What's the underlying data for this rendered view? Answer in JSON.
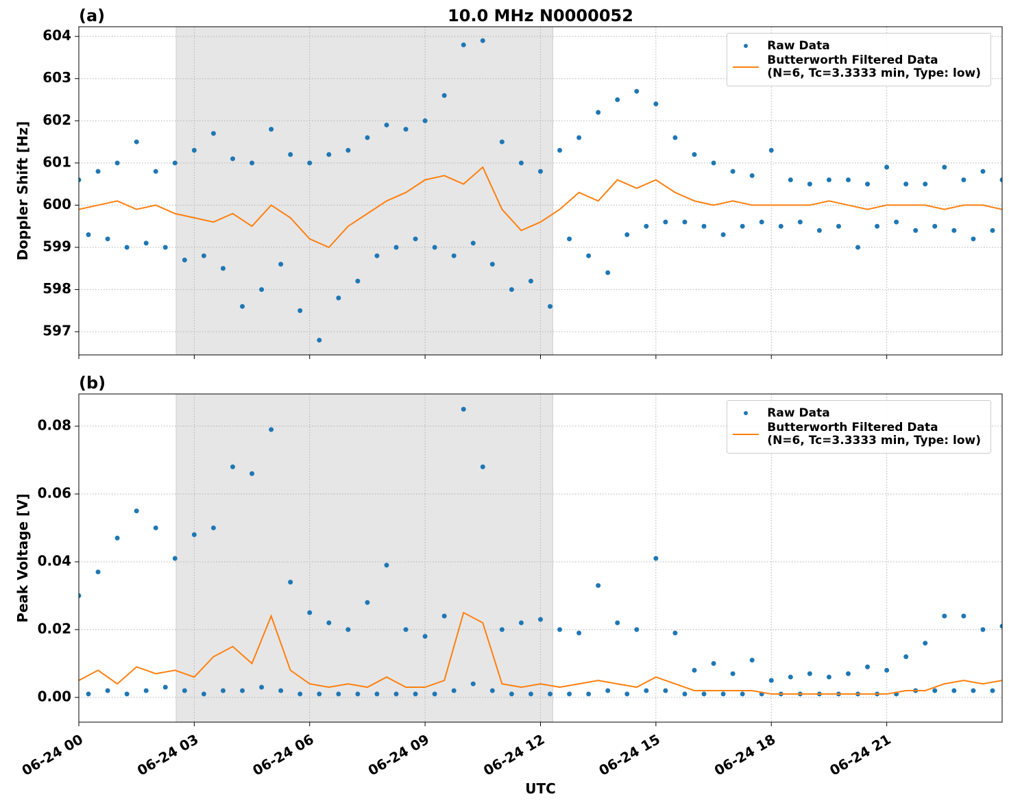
{
  "chart_data": [
    {
      "type": "scatter",
      "title": "10.0 MHz N0000052",
      "panel_label": "(a)",
      "ylabel": "Doppler Shift [Hz]",
      "xlim": [
        0,
        24
      ],
      "xticks": [
        0,
        3,
        6,
        9,
        12,
        15,
        18,
        21
      ],
      "ylim": [
        596.45,
        604.23
      ],
      "yticks": [
        597,
        598,
        599,
        600,
        601,
        602,
        603,
        604
      ],
      "grid": true,
      "legend": "upper right",
      "shaded_span": [
        2.53,
        12.32
      ],
      "series": [
        {
          "name": "Raw Data",
          "color": "#1f77b4",
          "style": "points",
          "x": [
            0,
            0.25,
            0.5,
            0.75,
            1,
            1.25,
            1.5,
            1.75,
            2,
            2.25,
            2.5,
            2.75,
            3,
            3.25,
            3.5,
            3.75,
            4,
            4.25,
            4.5,
            4.75,
            5,
            5.25,
            5.5,
            5.75,
            6,
            6.25,
            6.5,
            6.75,
            7,
            7.25,
            7.5,
            7.75,
            8,
            8.25,
            8.5,
            8.75,
            9,
            9.25,
            9.5,
            9.75,
            10,
            10.25,
            10.5,
            10.75,
            11,
            11.25,
            11.5,
            11.75,
            12,
            12.25,
            12.5,
            12.75,
            13,
            13.25,
            13.5,
            13.75,
            14,
            14.25,
            14.5,
            14.75,
            15,
            15.25,
            15.5,
            15.75,
            16,
            16.25,
            16.5,
            16.75,
            17,
            17.25,
            17.5,
            17.75,
            18,
            18.25,
            18.5,
            18.75,
            19,
            19.25,
            19.5,
            19.75,
            20,
            20.25,
            20.5,
            20.75,
            21,
            21.25,
            21.5,
            21.75,
            22,
            22.25,
            22.5,
            22.75,
            23,
            23.25,
            23.5,
            23.75,
            24
          ],
          "values": [
            600.6,
            599.3,
            600.8,
            599.2,
            601.0,
            599.0,
            601.5,
            599.1,
            600.8,
            599.0,
            601.0,
            598.7,
            601.3,
            598.8,
            601.7,
            598.5,
            601.1,
            597.6,
            601.0,
            598.0,
            601.8,
            598.6,
            601.2,
            597.5,
            601.0,
            596.8,
            601.2,
            597.8,
            601.3,
            598.2,
            601.6,
            598.8,
            601.9,
            599.0,
            601.8,
            599.2,
            602.0,
            599.0,
            602.6,
            598.8,
            603.8,
            599.1,
            603.9,
            598.6,
            601.5,
            598.0,
            601.0,
            598.2,
            600.8,
            597.6,
            601.3,
            599.2,
            601.6,
            598.8,
            602.2,
            598.4,
            602.5,
            599.3,
            602.7,
            599.5,
            602.4,
            599.6,
            601.6,
            599.6,
            601.2,
            599.5,
            601.0,
            599.3,
            600.8,
            599.5,
            600.7,
            599.6,
            601.3,
            599.5,
            600.6,
            599.6,
            600.5,
            599.4,
            600.6,
            599.5,
            600.6,
            599.0,
            600.5,
            599.5,
            600.9,
            599.6,
            600.5,
            599.4,
            600.5,
            599.5,
            600.9,
            599.4,
            600.6,
            599.2,
            600.8,
            599.4,
            600.6
          ]
        },
        {
          "name": "Butterworth Filtered Data\n(N=6, Tc=3.3333 min, Type: low)",
          "color": "#ff7f0e",
          "style": "line",
          "x": [
            0,
            0.5,
            1,
            1.5,
            2,
            2.5,
            3,
            3.5,
            4,
            4.5,
            5,
            5.5,
            6,
            6.5,
            7,
            7.5,
            8,
            8.5,
            9,
            9.5,
            10,
            10.5,
            11,
            11.5,
            12,
            12.5,
            13,
            13.5,
            14,
            14.5,
            15,
            15.5,
            16,
            16.5,
            17,
            17.5,
            18,
            18.5,
            19,
            19.5,
            20,
            20.5,
            21,
            21.5,
            22,
            22.5,
            23,
            23.5,
            24
          ],
          "values": [
            599.9,
            600.0,
            600.1,
            599.9,
            600.0,
            599.8,
            599.7,
            599.6,
            599.8,
            599.5,
            600.0,
            599.7,
            599.2,
            599.0,
            599.5,
            599.8,
            600.1,
            600.3,
            600.6,
            600.7,
            600.5,
            600.9,
            599.9,
            599.4,
            599.6,
            599.9,
            600.3,
            600.1,
            600.6,
            600.4,
            600.6,
            600.3,
            600.1,
            600.0,
            600.1,
            600.0,
            600.0,
            600.0,
            600.0,
            600.1,
            600.0,
            599.9,
            600.0,
            600.0,
            600.0,
            599.9,
            600.0,
            600.0,
            599.9
          ]
        }
      ]
    },
    {
      "type": "scatter",
      "panel_label": "(b)",
      "ylabel": "Peak Voltage [V]",
      "xlabel": "UTC",
      "xlim": [
        0,
        24
      ],
      "xticks": [
        {
          "value": 0,
          "label": "06-24 00"
        },
        {
          "value": 3,
          "label": "06-24 03"
        },
        {
          "value": 6,
          "label": "06-24 06"
        },
        {
          "value": 9,
          "label": "06-24 09"
        },
        {
          "value": 12,
          "label": "06-24 12"
        },
        {
          "value": 15,
          "label": "06-24 15"
        },
        {
          "value": 18,
          "label": "06-24 18"
        },
        {
          "value": 21,
          "label": "06-24 21"
        }
      ],
      "ylim": [
        -0.0073,
        0.0895
      ],
      "yticks": [
        {
          "value": 0,
          "label": "0.00"
        },
        {
          "value": 0.02,
          "label": "0.02"
        },
        {
          "value": 0.04,
          "label": "0.04"
        },
        {
          "value": 0.06,
          "label": "0.06"
        },
        {
          "value": 0.08,
          "label": "0.08"
        }
      ],
      "grid": true,
      "legend": "upper right",
      "shaded_span": [
        2.53,
        12.32
      ],
      "series": [
        {
          "name": "Raw Data",
          "color": "#1f77b4",
          "style": "points",
          "x": [
            0,
            0.25,
            0.5,
            0.75,
            1,
            1.25,
            1.5,
            1.75,
            2,
            2.25,
            2.5,
            2.75,
            3,
            3.25,
            3.5,
            3.75,
            4,
            4.25,
            4.5,
            4.75,
            5,
            5.25,
            5.5,
            5.75,
            6,
            6.25,
            6.5,
            6.75,
            7,
            7.25,
            7.5,
            7.75,
            8,
            8.25,
            8.5,
            8.75,
            9,
            9.25,
            9.5,
            9.75,
            10,
            10.25,
            10.5,
            10.75,
            11,
            11.25,
            11.5,
            11.75,
            12,
            12.25,
            12.5,
            12.75,
            13,
            13.25,
            13.5,
            13.75,
            14,
            14.25,
            14.5,
            14.75,
            15,
            15.25,
            15.5,
            15.75,
            16,
            16.25,
            16.5,
            16.75,
            17,
            17.25,
            17.5,
            17.75,
            18,
            18.25,
            18.5,
            18.75,
            19,
            19.25,
            19.5,
            19.75,
            20,
            20.25,
            20.5,
            20.75,
            21,
            21.25,
            21.5,
            21.75,
            22,
            22.25,
            22.5,
            22.75,
            23,
            23.25,
            23.5,
            23.75,
            24
          ],
          "values": [
            0.03,
            0.001,
            0.037,
            0.002,
            0.047,
            0.001,
            0.055,
            0.002,
            0.05,
            0.003,
            0.041,
            0.002,
            0.048,
            0.001,
            0.05,
            0.002,
            0.068,
            0.002,
            0.066,
            0.003,
            0.079,
            0.002,
            0.034,
            0.001,
            0.025,
            0.001,
            0.022,
            0.001,
            0.02,
            0.001,
            0.028,
            0.001,
            0.039,
            0.001,
            0.02,
            0.001,
            0.018,
            0.001,
            0.024,
            0.002,
            0.085,
            0.004,
            0.068,
            0.002,
            0.02,
            0.001,
            0.022,
            0.001,
            0.023,
            0.001,
            0.02,
            0.001,
            0.019,
            0.001,
            0.033,
            0.002,
            0.022,
            0.001,
            0.02,
            0.002,
            0.041,
            0.002,
            0.019,
            0.001,
            0.008,
            0.001,
            0.01,
            0.001,
            0.007,
            0.001,
            0.011,
            0.001,
            0.005,
            0.001,
            0.006,
            0.001,
            0.007,
            0.001,
            0.006,
            0.001,
            0.007,
            0.001,
            0.009,
            0.001,
            0.008,
            0.001,
            0.012,
            0.002,
            0.016,
            0.002,
            0.024,
            0.002,
            0.024,
            0.002,
            0.02,
            0.002,
            0.021
          ]
        },
        {
          "name": "Butterworth Filtered Data\n(N=6, Tc=3.3333 min, Type: low)",
          "color": "#ff7f0e",
          "style": "line",
          "x": [
            0,
            0.5,
            1,
            1.5,
            2,
            2.5,
            3,
            3.5,
            4,
            4.5,
            5,
            5.5,
            6,
            6.5,
            7,
            7.5,
            8,
            8.5,
            9,
            9.5,
            10,
            10.5,
            11,
            11.5,
            12,
            12.5,
            13,
            13.5,
            14,
            14.5,
            15,
            15.5,
            16,
            16.5,
            17,
            17.5,
            18,
            18.5,
            19,
            19.5,
            20,
            20.5,
            21,
            21.5,
            22,
            22.5,
            23,
            23.5,
            24
          ],
          "values": [
            0.005,
            0.008,
            0.004,
            0.009,
            0.007,
            0.008,
            0.006,
            0.012,
            0.015,
            0.01,
            0.024,
            0.008,
            0.004,
            0.003,
            0.004,
            0.003,
            0.006,
            0.003,
            0.003,
            0.005,
            0.025,
            0.022,
            0.004,
            0.003,
            0.004,
            0.003,
            0.004,
            0.005,
            0.004,
            0.003,
            0.006,
            0.004,
            0.002,
            0.002,
            0.002,
            0.002,
            0.001,
            0.001,
            0.001,
            0.001,
            0.001,
            0.001,
            0.001,
            0.002,
            0.002,
            0.004,
            0.005,
            0.004,
            0.005
          ]
        }
      ]
    }
  ]
}
